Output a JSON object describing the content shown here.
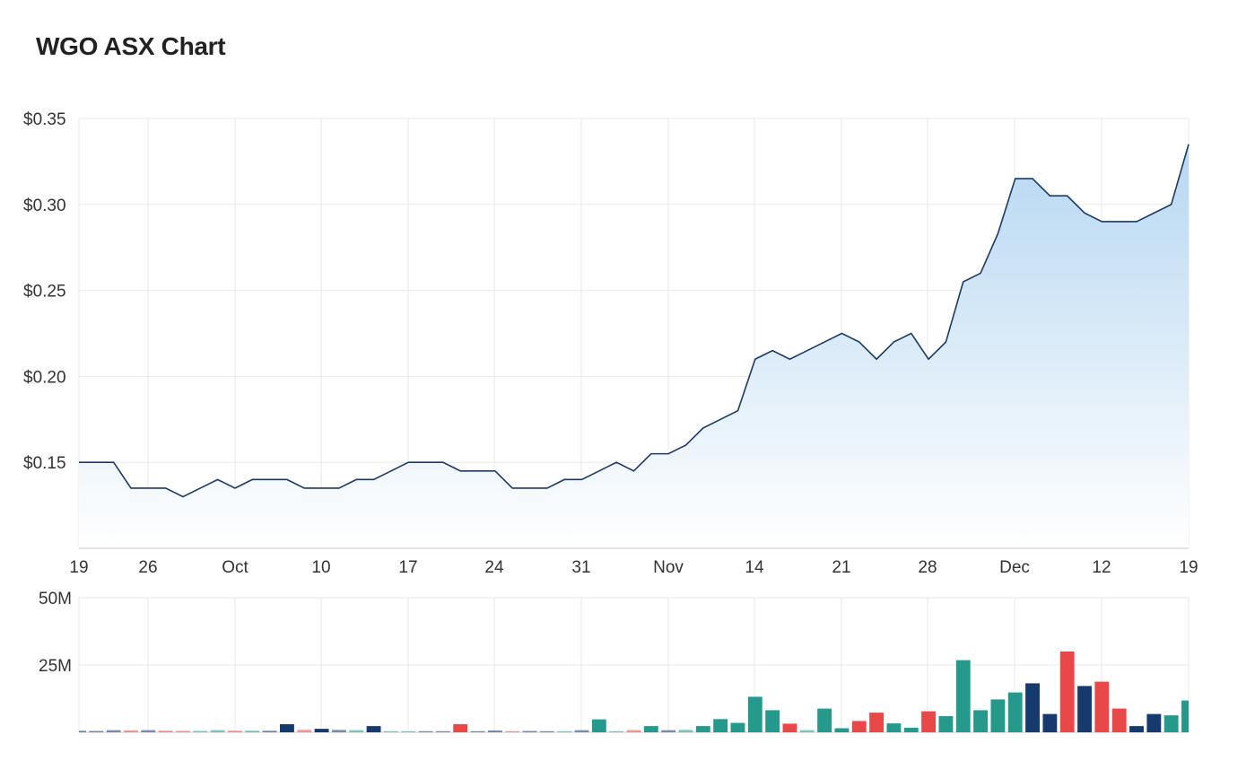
{
  "title": "WGO ASX Chart",
  "colors": {
    "line": "#1b3a66",
    "area_top": "#b7d7f2",
    "area_bottom": "#ffffff",
    "grid": "#e9e9e9",
    "vol_up": "#24998c",
    "vol_down": "#e84848",
    "vol_flat": "#163a6e"
  },
  "chart_data": [
    {
      "type": "area",
      "y_tick_labels": [
        "$0.35",
        "$0.30",
        "$0.25",
        "$0.20",
        "$0.15"
      ],
      "y_ticks": [
        0.35,
        0.3,
        0.25,
        0.2,
        0.15
      ],
      "ylim": [
        0.1,
        0.35
      ],
      "x_tick_labels": [
        "19",
        "26",
        "Oct",
        "10",
        "17",
        "24",
        "31",
        "Nov",
        "14",
        "21",
        "28",
        "Dec",
        "12",
        "19"
      ],
      "grid": true,
      "series": [
        {
          "values": [
            0.15,
            0.15,
            0.15,
            0.135,
            0.135,
            0.135,
            0.13,
            0.135,
            0.14,
            0.135,
            0.14,
            0.14,
            0.14,
            0.135,
            0.135,
            0.135,
            0.14,
            0.14,
            0.145,
            0.15,
            0.15,
            0.15,
            0.145,
            0.145,
            0.145,
            0.135,
            0.135,
            0.135,
            0.14,
            0.14,
            0.145,
            0.15,
            0.145,
            0.155,
            0.155,
            0.16,
            0.17,
            0.175,
            0.18,
            0.21,
            0.215,
            0.21,
            0.215,
            0.22,
            0.225,
            0.22,
            0.21,
            0.22,
            0.225,
            0.21,
            0.22,
            0.255,
            0.26,
            0.283,
            0.315,
            0.315,
            0.305,
            0.305,
            0.295,
            0.29,
            0.29,
            0.29,
            0.295,
            0.3,
            0.335
          ]
        }
      ]
    },
    {
      "type": "bar",
      "y_tick_labels": [
        "50M",
        "25M"
      ],
      "y_ticks": [
        50,
        25
      ],
      "ylim": [
        0,
        50
      ],
      "units": "M",
      "grid": true,
      "series": [
        {
          "values": [
            0.6,
            0.5,
            0.8,
            0.7,
            0.8,
            0.6,
            0.5,
            0.5,
            0.8,
            0.6,
            0.6,
            0.6,
            3.0,
            0.9,
            1.3,
            0.9,
            0.8,
            2.3,
            0.4,
            0.4,
            0.4,
            0.4,
            3.0,
            0.4,
            0.7,
            0.4,
            0.5,
            0.4,
            0.4,
            0.8,
            4.8,
            0.4,
            0.8,
            2.3,
            0.8,
            0.9,
            2.3,
            4.9,
            3.5,
            13.2,
            8.2,
            3.2,
            0.8,
            8.8,
            1.5,
            4.2,
            7.3,
            3.3,
            1.7,
            7.8,
            6.0,
            26.8,
            8.2,
            12.2,
            14.8,
            18.2,
            6.8,
            30.0,
            17.2,
            18.8,
            8.8,
            2.3,
            6.8,
            6.3,
            11.8
          ],
          "colors": [
            "flat",
            "flat",
            "flat",
            "down",
            "flat",
            "down",
            "down",
            "up",
            "up",
            "down",
            "up",
            "flat",
            "flat",
            "down",
            "flat",
            "flat",
            "up",
            "flat",
            "up",
            "up",
            "flat",
            "flat",
            "down",
            "flat",
            "flat",
            "down",
            "flat",
            "flat",
            "up",
            "flat",
            "up",
            "up",
            "down",
            "up",
            "flat",
            "up",
            "up",
            "up",
            "up",
            "up",
            "up",
            "down",
            "up",
            "up",
            "up",
            "down",
            "down",
            "up",
            "up",
            "down",
            "up",
            "up",
            "up",
            "up",
            "up",
            "flat",
            "flat",
            "down",
            "flat",
            "down",
            "down",
            "flat",
            "flat",
            "up",
            "up"
          ]
        }
      ]
    }
  ]
}
